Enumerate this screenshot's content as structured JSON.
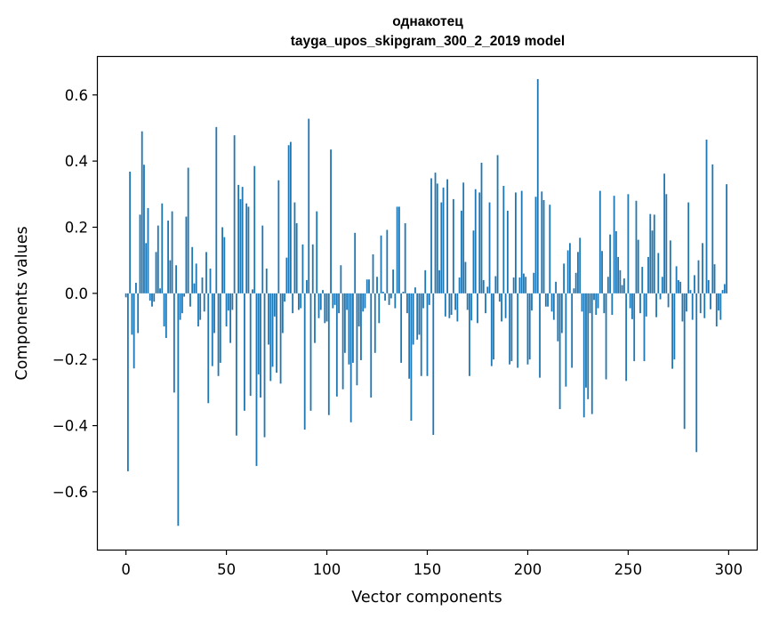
{
  "chart_data": {
    "type": "bar",
    "title": "однакотец",
    "subtitle": "tayga_upos_skipgram_300_2_2019 model",
    "xlabel": "Vector components",
    "ylabel": "Components values",
    "xlim": [
      -14,
      314
    ],
    "ylim": [
      -0.775,
      0.715
    ],
    "xticks": [
      0,
      50,
      100,
      150,
      200,
      250,
      300
    ],
    "yticks": [
      -0.6,
      -0.4,
      -0.2,
      0.0,
      0.2,
      0.4,
      0.6
    ],
    "ytick_labels": [
      "−0.6",
      "−0.4",
      "−0.2",
      "0.0",
      "0.2",
      "0.4",
      "0.6"
    ],
    "bar_color": "#1f77b4",
    "grid": false,
    "values": [
      -0.012,
      -0.538,
      0.368,
      -0.125,
      -0.227,
      0.032,
      -0.12,
      0.238,
      0.49,
      0.389,
      0.152,
      0.258,
      -0.022,
      -0.04,
      -0.025,
      0.125,
      0.205,
      0.015,
      0.272,
      -0.1,
      -0.135,
      0.22,
      0.1,
      0.248,
      -0.3,
      0.085,
      -0.703,
      -0.08,
      -0.06,
      -0.01,
      0.232,
      0.38,
      -0.04,
      0.14,
      0.03,
      0.09,
      -0.1,
      -0.08,
      0.048,
      -0.055,
      0.125,
      -0.332,
      0.075,
      -0.22,
      -0.12,
      0.503,
      -0.25,
      -0.21,
      0.2,
      0.17,
      -0.1,
      -0.052,
      -0.15,
      -0.05,
      0.478,
      -0.43,
      0.328,
      0.285,
      0.322,
      -0.355,
      0.272,
      0.262,
      -0.31,
      0.012,
      0.385,
      -0.522,
      -0.245,
      -0.315,
      0.205,
      -0.435,
      0.075,
      -0.155,
      -0.265,
      -0.222,
      -0.07,
      -0.24,
      0.342,
      -0.273,
      -0.12,
      -0.025,
      0.108,
      0.448,
      0.458,
      -0.06,
      0.275,
      0.212,
      -0.05,
      -0.045,
      0.148,
      -0.412,
      0.04,
      0.528,
      -0.355,
      0.148,
      -0.15,
      0.248,
      -0.075,
      -0.05,
      0.01,
      -0.09,
      -0.085,
      -0.368,
      0.435,
      -0.045,
      -0.035,
      -0.312,
      -0.06,
      0.085,
      -0.29,
      -0.18,
      -0.05,
      -0.215,
      -0.39,
      -0.21,
      0.183,
      -0.278,
      -0.1,
      -0.202,
      -0.055,
      -0.045,
      0.042,
      0.042,
      -0.315,
      0.118,
      -0.18,
      0.05,
      -0.09,
      0.175,
      0.005,
      -0.022,
      0.192,
      -0.035,
      -0.015,
      0.072,
      -0.045,
      0.262,
      0.262,
      -0.21,
      0.005,
      0.212,
      -0.06,
      -0.258,
      -0.385,
      -0.155,
      0.018,
      -0.14,
      -0.125,
      -0.25,
      -0.045,
      0.07,
      -0.25,
      -0.035,
      0.348,
      -0.428,
      0.365,
      0.332,
      0.07,
      0.275,
      0.32,
      -0.07,
      0.345,
      -0.075,
      -0.065,
      0.285,
      -0.05,
      -0.085,
      0.048,
      0.25,
      0.335,
      0.095,
      -0.05,
      -0.25,
      -0.082,
      0.19,
      0.315,
      -0.09,
      0.305,
      0.395,
      0.04,
      -0.06,
      0.02,
      0.275,
      -0.22,
      -0.2,
      0.052,
      0.418,
      -0.025,
      -0.085,
      0.325,
      -0.075,
      0.25,
      -0.215,
      -0.205,
      0.048,
      0.305,
      -0.225,
      0.048,
      0.31,
      0.06,
      0.05,
      -0.215,
      -0.2,
      -0.052,
      0.062,
      0.292,
      0.648,
      -0.255,
      0.308,
      0.282,
      -0.04,
      -0.04,
      0.268,
      -0.055,
      -0.08,
      0.035,
      -0.145,
      -0.35,
      -0.12,
      0.09,
      -0.282,
      0.13,
      0.152,
      -0.225,
      0.015,
      0.062,
      0.125,
      0.168,
      -0.055,
      -0.375,
      -0.285,
      -0.32,
      -0.06,
      -0.365,
      -0.02,
      -0.065,
      -0.045,
      0.31,
      0.128,
      -0.06,
      -0.26,
      0.05,
      0.178,
      -0.065,
      0.295,
      0.188,
      0.11,
      0.07,
      0.025,
      0.045,
      -0.265,
      0.3,
      -0.045,
      -0.078,
      -0.205,
      0.28,
      0.162,
      -0.06,
      0.08,
      -0.205,
      -0.07,
      0.11,
      0.24,
      0.19,
      0.238,
      -0.072,
      0.122,
      -0.018,
      0.05,
      0.362,
      0.3,
      -0.042,
      0.16,
      -0.228,
      -0.2,
      0.082,
      0.04,
      0.035,
      -0.085,
      -0.41,
      -0.055,
      0.275,
      0.01,
      -0.08,
      0.055,
      -0.48,
      0.1,
      -0.06,
      0.152,
      -0.075,
      0.465,
      0.04,
      -0.048,
      0.39,
      0.088,
      -0.1,
      -0.052,
      -0.08,
      0.01,
      0.028,
      0.33
    ]
  }
}
